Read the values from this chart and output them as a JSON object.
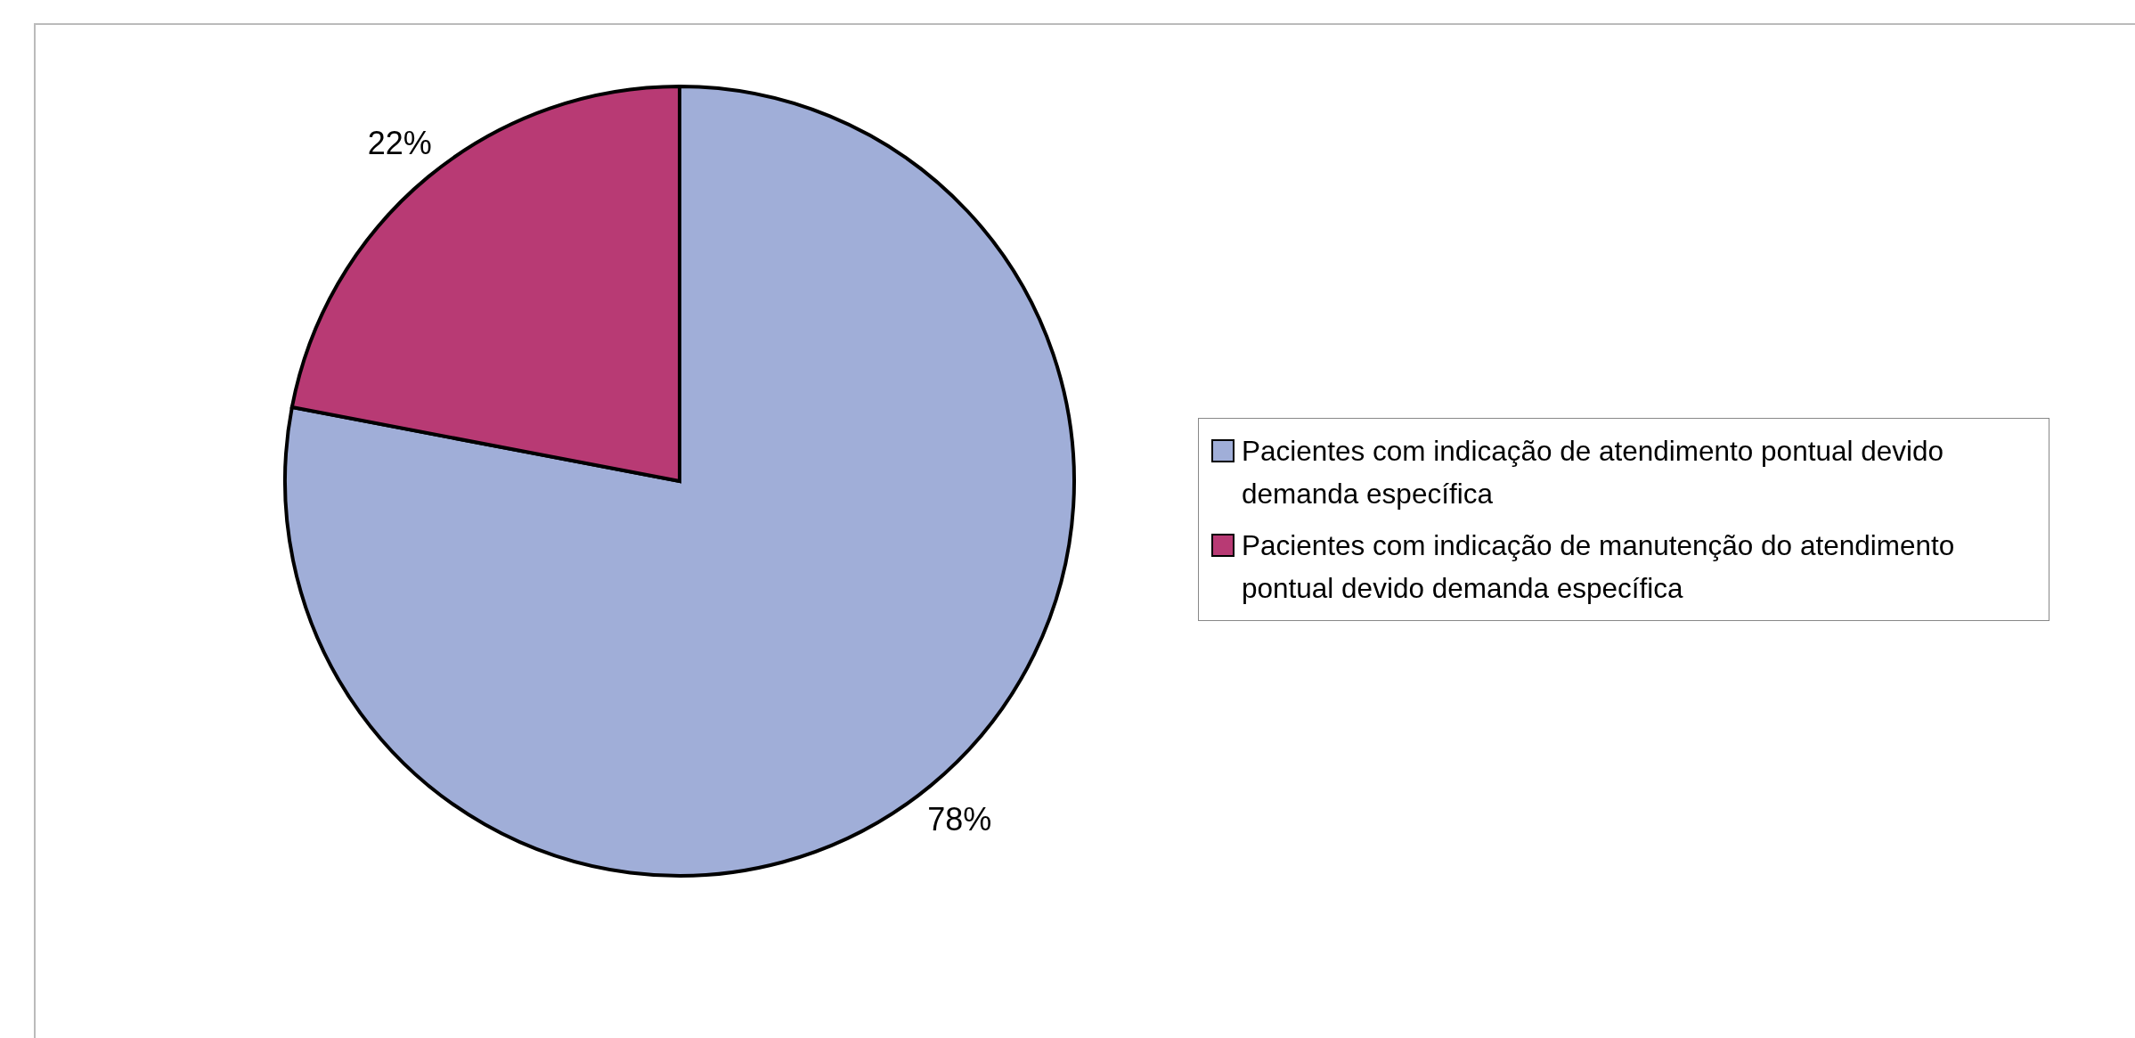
{
  "chart_data": {
    "type": "pie",
    "categories": [
      "Pacientes com indicação de atendimento pontual devido demanda específica",
      "Pacientes com indicação de manutenção do atendimento pontual devido demanda específica"
    ],
    "values": [
      78,
      22
    ],
    "colors": [
      "#a0aed8",
      "#b83a74"
    ],
    "value_labels": [
      "78%",
      "22%"
    ],
    "legend": "right"
  }
}
